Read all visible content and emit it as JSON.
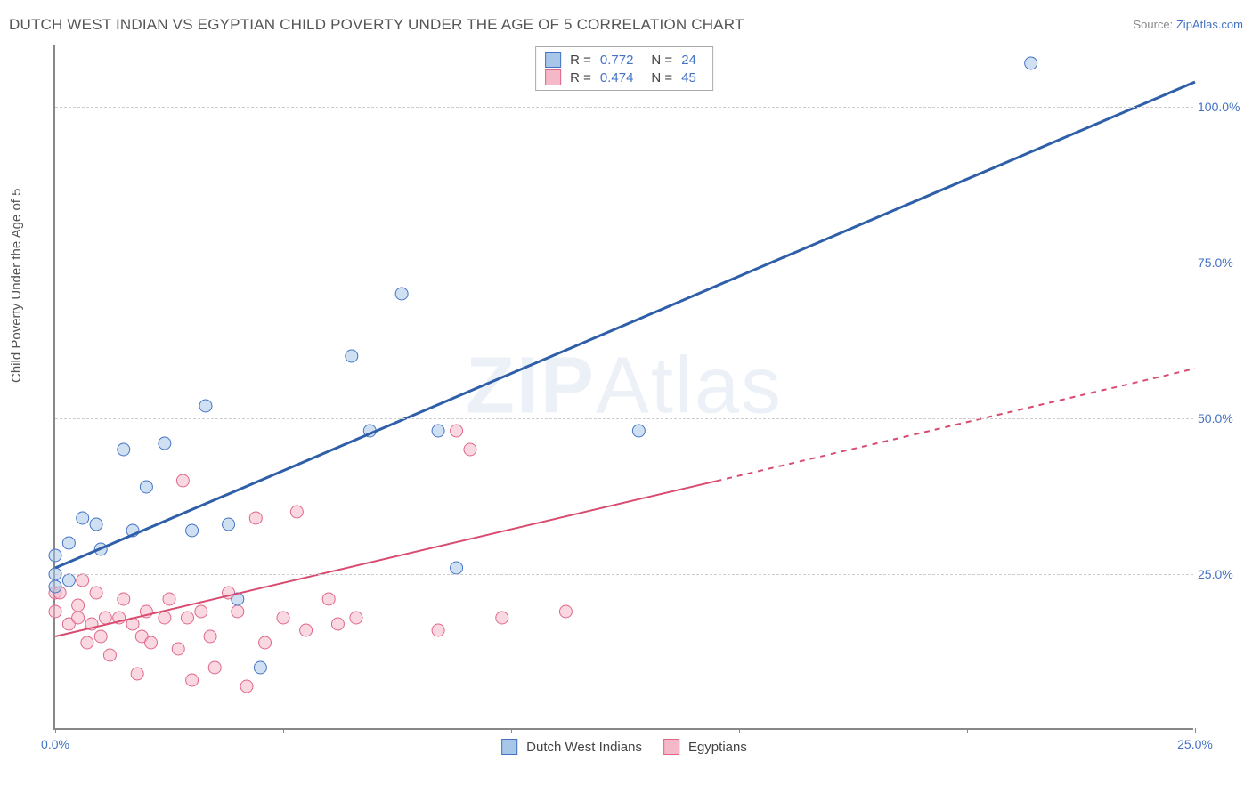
{
  "title": "DUTCH WEST INDIAN VS EGYPTIAN CHILD POVERTY UNDER THE AGE OF 5 CORRELATION CHART",
  "source_label": "Source: ",
  "source_value": "ZipAtlas.com",
  "y_axis_label": "Child Poverty Under the Age of 5",
  "watermark_zip": "ZIP",
  "watermark_atlas": "Atlas",
  "colors": {
    "series_a_fill": "#a8c6e8",
    "series_a_stroke": "#4472c4",
    "series_b_fill": "#f5b8c8",
    "series_b_stroke": "#e06688",
    "line_a": "#2e5fa8",
    "line_b": "#d94a6f",
    "axis": "#888888",
    "grid": "#cccccc",
    "tick_text": "#4472c4",
    "label_text": "#555555",
    "background": "#ffffff"
  },
  "chart": {
    "type": "scatter",
    "xlim": [
      0,
      25
    ],
    "ylim": [
      0,
      110
    ],
    "x_ticks": [
      0,
      5,
      10,
      15,
      20,
      25
    ],
    "x_tick_labels": {
      "0": "0.0%",
      "25": "25.0%"
    },
    "y_ticks": [
      25,
      50,
      75,
      100
    ],
    "y_tick_labels": [
      "25.0%",
      "50.0%",
      "75.0%",
      "100.0%"
    ],
    "marker_radius": 7,
    "marker_opacity": 0.55,
    "line_width_a": 3,
    "line_width_b": 2
  },
  "legend_top": [
    {
      "swatch_fill": "#a8c6e8",
      "swatch_stroke": "#4472c4",
      "r_label": "R =",
      "r_value": "0.772",
      "n_label": "N =",
      "n_value": "24"
    },
    {
      "swatch_fill": "#f5b8c8",
      "swatch_stroke": "#e06688",
      "r_label": "R =",
      "r_value": "0.474",
      "n_label": "N =",
      "n_value": "45"
    }
  ],
  "legend_bottom": [
    {
      "swatch_fill": "#a8c6e8",
      "swatch_stroke": "#4472c4",
      "label": "Dutch West Indians"
    },
    {
      "swatch_fill": "#f5b8c8",
      "swatch_stroke": "#e06688",
      "label": "Egyptians"
    }
  ],
  "series_a": {
    "name": "Dutch West Indians",
    "trend": {
      "x1": 0,
      "y1": 26,
      "x2": 25,
      "y2": 104,
      "dashed_from_x": null
    },
    "points": [
      [
        0.0,
        28
      ],
      [
        0.0,
        25
      ],
      [
        0.0,
        23
      ],
      [
        0.3,
        30
      ],
      [
        0.3,
        24
      ],
      [
        0.6,
        34
      ],
      [
        0.9,
        33
      ],
      [
        1.0,
        29
      ],
      [
        1.5,
        45
      ],
      [
        1.7,
        32
      ],
      [
        2.0,
        39
      ],
      [
        2.4,
        46
      ],
      [
        3.0,
        32
      ],
      [
        3.3,
        52
      ],
      [
        3.8,
        33
      ],
      [
        4.0,
        21
      ],
      [
        4.5,
        10
      ],
      [
        6.5,
        60
      ],
      [
        6.9,
        48
      ],
      [
        7.6,
        70
      ],
      [
        8.4,
        48
      ],
      [
        8.8,
        26
      ],
      [
        12.8,
        48
      ],
      [
        21.4,
        107
      ]
    ]
  },
  "series_b": {
    "name": "Egyptians",
    "trend": {
      "x1": 0,
      "y1": 15,
      "x2": 25,
      "y2": 58,
      "dashed_from_x": 14.5
    },
    "points": [
      [
        0.0,
        22
      ],
      [
        0.0,
        19
      ],
      [
        0.1,
        22
      ],
      [
        0.3,
        17
      ],
      [
        0.5,
        18
      ],
      [
        0.5,
        20
      ],
      [
        0.6,
        24
      ],
      [
        0.7,
        14
      ],
      [
        0.8,
        17
      ],
      [
        0.9,
        22
      ],
      [
        1.0,
        15
      ],
      [
        1.1,
        18
      ],
      [
        1.2,
        12
      ],
      [
        1.4,
        18
      ],
      [
        1.5,
        21
      ],
      [
        1.7,
        17
      ],
      [
        1.8,
        9
      ],
      [
        1.9,
        15
      ],
      [
        2.0,
        19
      ],
      [
        2.1,
        14
      ],
      [
        2.4,
        18
      ],
      [
        2.5,
        21
      ],
      [
        2.7,
        13
      ],
      [
        2.8,
        40
      ],
      [
        2.9,
        18
      ],
      [
        3.0,
        8
      ],
      [
        3.2,
        19
      ],
      [
        3.4,
        15
      ],
      [
        3.5,
        10
      ],
      [
        3.8,
        22
      ],
      [
        4.0,
        19
      ],
      [
        4.2,
        7
      ],
      [
        4.4,
        34
      ],
      [
        4.6,
        14
      ],
      [
        5.0,
        18
      ],
      [
        5.3,
        35
      ],
      [
        5.5,
        16
      ],
      [
        6.0,
        21
      ],
      [
        6.2,
        17
      ],
      [
        6.6,
        18
      ],
      [
        8.4,
        16
      ],
      [
        8.8,
        48
      ],
      [
        9.1,
        45
      ],
      [
        9.8,
        18
      ],
      [
        11.2,
        19
      ]
    ]
  }
}
